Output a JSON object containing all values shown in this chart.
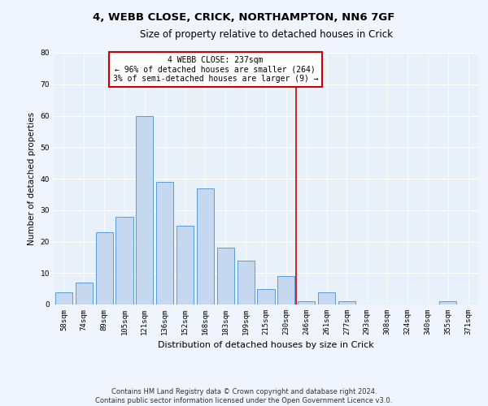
{
  "title1": "4, WEBB CLOSE, CRICK, NORTHAMPTON, NN6 7GF",
  "title2": "Size of property relative to detached houses in Crick",
  "xlabel": "Distribution of detached houses by size in Crick",
  "ylabel": "Number of detached properties",
  "categories": [
    "58sqm",
    "74sqm",
    "89sqm",
    "105sqm",
    "121sqm",
    "136sqm",
    "152sqm",
    "168sqm",
    "183sqm",
    "199sqm",
    "215sqm",
    "230sqm",
    "246sqm",
    "261sqm",
    "277sqm",
    "293sqm",
    "308sqm",
    "324sqm",
    "340sqm",
    "355sqm",
    "371sqm"
  ],
  "bar_heights": [
    4,
    7,
    23,
    28,
    60,
    39,
    25,
    37,
    18,
    14,
    5,
    9,
    1,
    4,
    1,
    0,
    0,
    0,
    0,
    1,
    0
  ],
  "bar_color": "#c5d8f0",
  "bar_edge_color": "#5b9bd5",
  "background_color": "#e8f0fa",
  "grid_color": "#ffffff",
  "fig_background": "#f0f4fc",
  "ylim": [
    0,
    80
  ],
  "yticks": [
    0,
    10,
    20,
    30,
    40,
    50,
    60,
    70,
    80
  ],
  "vline_x_index": 11.5,
  "vline_color": "#cc0000",
  "annotation_text": "4 WEBB CLOSE: 237sqm\n← 96% of detached houses are smaller (264)\n3% of semi-detached houses are larger (9) →",
  "annotation_box_color": "#ffffff",
  "annotation_box_edge": "#cc0000",
  "footer_text": "Contains HM Land Registry data © Crown copyright and database right 2024.\nContains public sector information licensed under the Open Government Licence v3.0.",
  "title1_fontsize": 9.5,
  "title2_fontsize": 8.5,
  "xlabel_fontsize": 8,
  "ylabel_fontsize": 7.5,
  "tick_fontsize": 6.5,
  "annotation_fontsize": 7,
  "footer_fontsize": 6
}
